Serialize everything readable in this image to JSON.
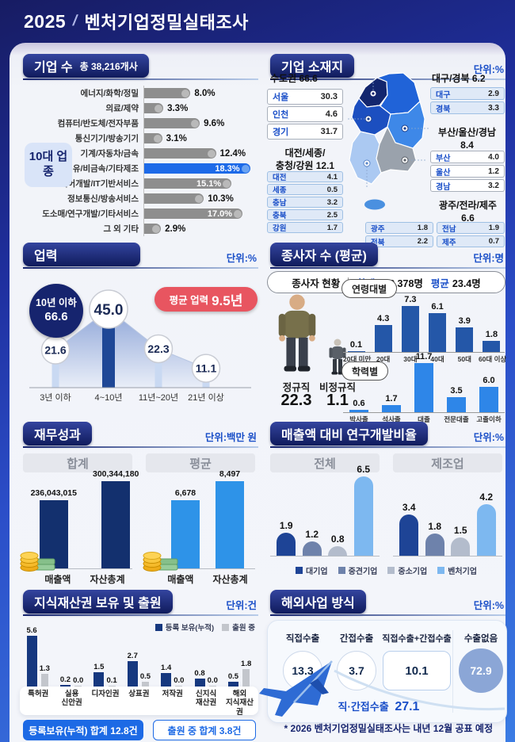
{
  "header": {
    "year": "2025",
    "divider": "/",
    "title": "벤처기업정밀실태조사"
  },
  "palette": {
    "accent_blue": "#1d6ae5",
    "navy": "#16246e",
    "unit_blue": "#1a4fc8",
    "red_badge": "#e85560"
  },
  "company_count": {
    "title": "기업 수",
    "total": "총 38,216개사",
    "group_label": "10대 업종"
  },
  "location": {
    "title": "기업 소재지",
    "unit": "단위:%"
  },
  "years": {
    "title": "업력",
    "unit": "단위:%",
    "cum_label": "10년 이하",
    "cum_value": "66.6",
    "avg_label": "평균 업력",
    "avg_value": "9.5년"
  },
  "employees": {
    "title": "종사자 수 (평균)",
    "unit": "단위:명",
    "status_label": "종사자 현황",
    "total_label": "합계",
    "total_value": "828,378명",
    "avg_label": "평균",
    "avg_value": "23.4명",
    "regular": {
      "label": "정규직",
      "value": "22.3"
    },
    "irregular": {
      "label": "비정규직",
      "value": "1.1"
    },
    "age_badge": "연령대별",
    "edu_badge": "학력별"
  },
  "finance": {
    "title": "재무성과",
    "unit": "단위:백만 원"
  },
  "rnd": {
    "title": "매출액 대비 연구개발비율",
    "unit": "단위:%"
  },
  "ip": {
    "title": "지식재산권 보유 및 출원",
    "unit": "단위:건",
    "badge_filled": "등록보유(누적) 합계 12.8건",
    "badge_outline": "출원 중 합계 3.8건"
  },
  "overseas": {
    "title": "해외사업 방식",
    "unit": "단위:%",
    "combined_label": "직·간접수출",
    "combined_value": "27.1"
  },
  "footnote": "* 2026 벤처기업정밀실태조사는 내년 12월 공표 예정",
  "chart_data": [
    {
      "id": "industry_share",
      "type": "bar",
      "orientation": "horizontal",
      "unit": "%",
      "title": "기업 수 - 10대 업종",
      "categories": [
        "에너지/화학/정밀",
        "의료/제약",
        "컴퓨터/반도체/전자부품",
        "통신기기/방송기기",
        "기계/자동차/금속",
        "음식료/섬유/비금속/기타제조",
        "소프트웨어개발/IT기반서비스",
        "정보통신/방송서비스",
        "도소매/연구개발/기타서비스",
        "그 외 기타"
      ],
      "values": [
        "8.0%",
        "3.3%",
        "9.6%",
        "3.1%",
        "12.4%",
        "18.3%",
        "15.1%",
        "10.3%",
        "17.0%",
        "2.9%"
      ],
      "highlight_index": 5,
      "value_inside": [
        5,
        6,
        8
      ],
      "bar_color": "#8e8e8e",
      "bar_cap_color": "#b9b9b9",
      "highlight_color": "#1d6ae8",
      "highlight_cap_color": "#6aa3f2"
    },
    {
      "id": "location_share",
      "type": "table",
      "unit": "%",
      "groups": [
        {
          "lines": [
            "수도권 66.6"
          ],
          "style": "plain",
          "rows": [
            [
              "서울",
              "30.3"
            ],
            [
              "인천",
              "4.6"
            ],
            [
              "경기",
              "31.7"
            ]
          ]
        },
        {
          "lines": [
            "대구/경북 6.2"
          ],
          "style": "tint",
          "rows": [
            [
              "대구",
              "2.9"
            ],
            [
              "경북",
              "3.3"
            ]
          ]
        },
        {
          "lines": [
            "대전/세종/",
            "충청/강원 12.1"
          ],
          "style": "tint",
          "rows": [
            [
              "대전",
              "4.1"
            ],
            [
              "세종",
              "0.5"
            ],
            [
              "충남",
              "3.2"
            ],
            [
              "충북",
              "2.5"
            ],
            [
              "강원",
              "1.7"
            ]
          ]
        },
        {
          "lines": [
            "부산/울산/경남",
            "8.4"
          ],
          "style": "plain",
          "rows": [
            [
              "부산",
              "4.0"
            ],
            [
              "울산",
              "1.2"
            ],
            [
              "경남",
              "3.2"
            ]
          ]
        },
        {
          "lines": [
            "광주/전라/제주",
            "6.6"
          ],
          "style": "tint",
          "rows": [
            [
              "광주",
              "1.8"
            ],
            [
              "전북",
              "2.2"
            ],
            [
              "전남",
              "1.9"
            ],
            [
              "제주",
              "0.7"
            ]
          ]
        }
      ]
    },
    {
      "id": "years_dist",
      "type": "area",
      "unit": "%",
      "categories": [
        "3년 이하",
        "4~10년",
        "11년~20년",
        "21년 이상"
      ],
      "values": [
        "21.6",
        "45.0",
        "22.3",
        "11.1"
      ],
      "peak_index": 1
    },
    {
      "id": "employees_by_age",
      "type": "bar",
      "unit": "명",
      "categories": [
        "20대 미만",
        "20대",
        "30대",
        "40대",
        "50대",
        "60대 이상"
      ],
      "values": [
        "0.1",
        "4.3",
        "7.3",
        "6.1",
        "3.9",
        "1.8"
      ],
      "bar_color": "#2457a8"
    },
    {
      "id": "employees_by_edu",
      "type": "bar",
      "unit": "명",
      "categories": [
        "박사졸",
        "석사졸",
        "대졸",
        "전문대졸",
        "고졸이하"
      ],
      "values": [
        "0.6",
        "1.7",
        "11.7",
        "3.5",
        "6.0"
      ],
      "bar_color": "#2e86e8"
    },
    {
      "id": "finance",
      "type": "bar",
      "unit": "백만 원",
      "groups": [
        {
          "header": "합계",
          "categories": [
            "매출액",
            "자산총계"
          ],
          "values": [
            236043015,
            300344180
          ],
          "value_labels": [
            "236,043,015",
            "300,344,180"
          ],
          "bar_color": "#13306e"
        },
        {
          "header": "평균",
          "categories": [
            "매출액",
            "자산총계"
          ],
          "values": [
            6678,
            8497
          ],
          "value_labels": [
            "6,678",
            "8,497"
          ],
          "bar_color": "#2e93e8"
        }
      ]
    },
    {
      "id": "rnd_ratio",
      "type": "bar",
      "unit": "%",
      "series_names": [
        "대기업",
        "중견기업",
        "중소기업",
        "벤처기업"
      ],
      "series_colors": [
        "#1e4496",
        "#6e82ab",
        "#b3bccc",
        "#7db8f0"
      ],
      "groups": [
        {
          "header": "전체",
          "values": [
            "1.9",
            "1.2",
            "0.8",
            "6.5"
          ]
        },
        {
          "header": "제조업",
          "values": [
            "3.4",
            "1.8",
            "1.5",
            "4.2"
          ]
        }
      ],
      "ylim": [
        0,
        7
      ]
    },
    {
      "id": "ip_rights",
      "type": "bar",
      "unit": "건",
      "categories": [
        [
          "특허권"
        ],
        [
          "실용",
          "신안권"
        ],
        [
          "디자인권"
        ],
        [
          "상표권"
        ],
        [
          "저작권"
        ],
        [
          "신지식",
          "재산권"
        ],
        [
          "해외",
          "지식재산권"
        ]
      ],
      "series": [
        {
          "name": "등록 보유(누적)",
          "color": "#16387f",
          "values": [
            "5.6",
            "0.2",
            "1.5",
            "2.7",
            "1.4",
            "0.8",
            "0.5"
          ]
        },
        {
          "name": "출원 중",
          "color": "#c3c6cc",
          "values": [
            "1.3",
            "0.0",
            "0.1",
            "0.5",
            "0.0",
            "0.0",
            "1.8"
          ]
        }
      ]
    },
    {
      "id": "overseas_mode",
      "type": "table",
      "unit": "%",
      "items": [
        {
          "label": "직접수출",
          "value": "13.3",
          "shape": "circle"
        },
        {
          "label": "간접수출",
          "value": "3.7",
          "shape": "circle"
        },
        {
          "label": "직접수출+간접수출",
          "value": "10.1",
          "shape": "box"
        },
        {
          "label": "수출없음",
          "value": "72.9",
          "shape": "circle-filled"
        }
      ]
    }
  ]
}
